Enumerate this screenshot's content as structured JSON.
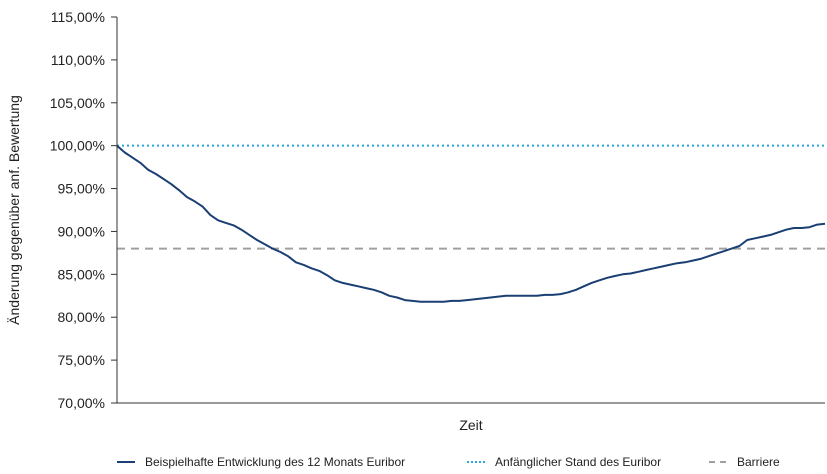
{
  "chart_data": {
    "type": "line",
    "title": "",
    "xlabel": "Zeit",
    "ylabel": "Änderung gegenüber anf. Bewertung",
    "ylim": [
      70,
      115
    ],
    "yticks": [
      70,
      75,
      80,
      85,
      90,
      95,
      100,
      105,
      110,
      115
    ],
    "ytick_labels": [
      "70,00%",
      "75,00%",
      "80,00%",
      "85,00%",
      "90,00%",
      "95,00%",
      "100,00%",
      "105,00%",
      "110,00%",
      "115,00%"
    ],
    "grid": false,
    "legend_position": "bottom",
    "series": [
      {
        "name": "Beispielhafte Entwicklung des 12 Monats Euribor",
        "color": "#1b3f73",
        "style": "solid",
        "values": [
          100.0,
          99.2,
          98.6,
          98.0,
          97.2,
          96.7,
          96.1,
          95.5,
          94.8,
          94.0,
          93.5,
          92.9,
          91.9,
          91.3,
          91.0,
          90.7,
          90.2,
          89.6,
          89.0,
          88.5,
          88.0,
          87.6,
          87.1,
          86.4,
          86.1,
          85.7,
          85.4,
          84.9,
          84.3,
          84.0,
          83.8,
          83.6,
          83.4,
          83.2,
          82.9,
          82.5,
          82.3,
          82.0,
          81.9,
          81.8,
          81.8,
          81.8,
          81.8,
          81.9,
          81.9,
          82.0,
          82.1,
          82.2,
          82.3,
          82.4,
          82.5,
          82.5,
          82.5,
          82.5,
          82.5,
          82.6,
          82.6,
          82.7,
          82.9,
          83.2,
          83.6,
          84.0,
          84.3,
          84.6,
          84.8,
          85.0,
          85.1,
          85.3,
          85.5,
          85.7,
          85.9,
          86.1,
          86.3,
          86.4,
          86.6,
          86.8,
          87.1,
          87.4,
          87.7,
          88.0,
          88.3,
          89.0,
          89.2,
          89.4,
          89.6,
          89.9,
          90.2,
          90.4,
          90.4,
          90.5,
          90.8,
          90.9
        ]
      },
      {
        "name": "Anfänglicher Stand des Euribor",
        "color": "#29a4dc",
        "style": "dotted",
        "constant": 100
      },
      {
        "name": "Barriere",
        "color": "#a0a0a0",
        "style": "dashed",
        "constant": 88
      }
    ]
  }
}
